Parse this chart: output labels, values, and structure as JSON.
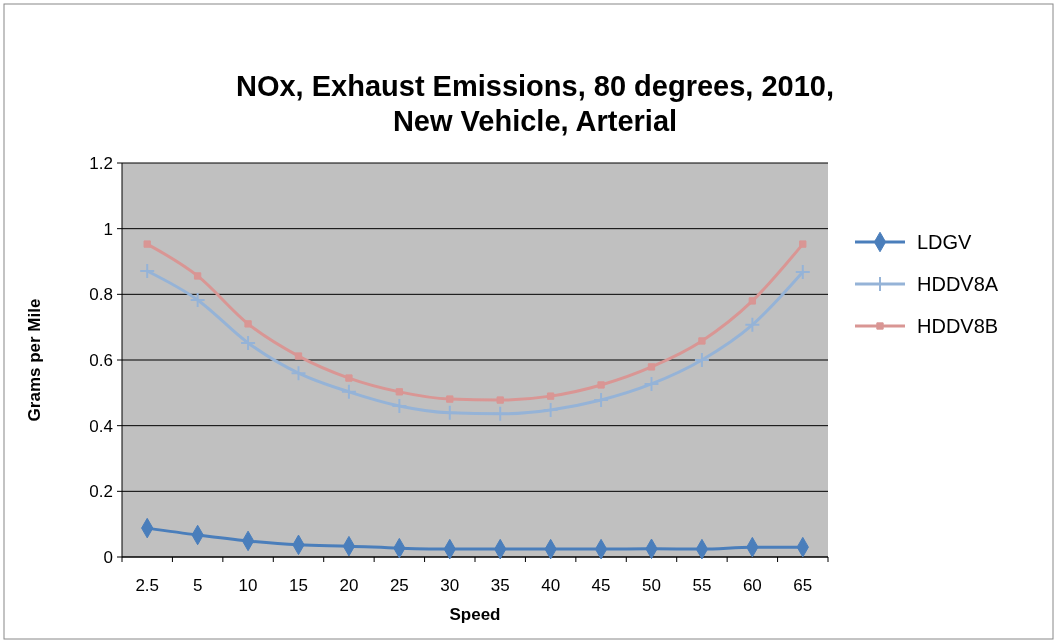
{
  "chart_data": {
    "type": "line",
    "title": "NOx, Exhaust Emissions, 80 degrees, 2010, New Vehicle, Arterial",
    "xlabel": "Speed",
    "ylabel": "Grams per Mile",
    "categories": [
      "2.5",
      "5",
      "10",
      "15",
      "20",
      "25",
      "30",
      "35",
      "40",
      "45",
      "50",
      "55",
      "60",
      "65"
    ],
    "series": [
      {
        "name": "LDGV",
        "color": "#4a7ebb",
        "marker": "diamond",
        "values": [
          0.088,
          0.067,
          0.049,
          0.037,
          0.033,
          0.027,
          0.024,
          0.024,
          0.024,
          0.024,
          0.025,
          0.024,
          0.03,
          0.03
        ]
      },
      {
        "name": "HDDV8A",
        "color": "#95b3d7",
        "marker": "cross",
        "values": [
          0.871,
          0.783,
          0.652,
          0.56,
          0.503,
          0.46,
          0.439,
          0.436,
          0.448,
          0.478,
          0.527,
          0.6,
          0.707,
          0.868
        ]
      },
      {
        "name": "HDDV8B",
        "color": "#d99694",
        "marker": "square",
        "values": [
          0.953,
          0.856,
          0.71,
          0.612,
          0.545,
          0.503,
          0.481,
          0.478,
          0.49,
          0.524,
          0.579,
          0.658,
          0.78,
          0.953
        ]
      }
    ],
    "ylim": [
      0,
      1.2
    ],
    "yticks": [
      0,
      0.2,
      0.4,
      0.6,
      0.8,
      1,
      1.2
    ],
    "grid": "y",
    "legend": "right"
  }
}
